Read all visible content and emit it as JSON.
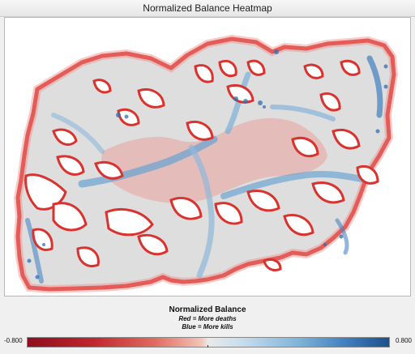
{
  "window": {
    "title": "Normalized Balance Heatmap"
  },
  "legend": {
    "title": "Normalized Balance",
    "line1": "Red = More deaths",
    "line2": "Blue = More kills",
    "min_label": "-0.800",
    "max_label": "0.800"
  },
  "colors": {
    "negative": "#b2182b",
    "neutral": "#e8e8e8",
    "positive": "#2166ac",
    "map_base": "#dcdcdc"
  }
}
